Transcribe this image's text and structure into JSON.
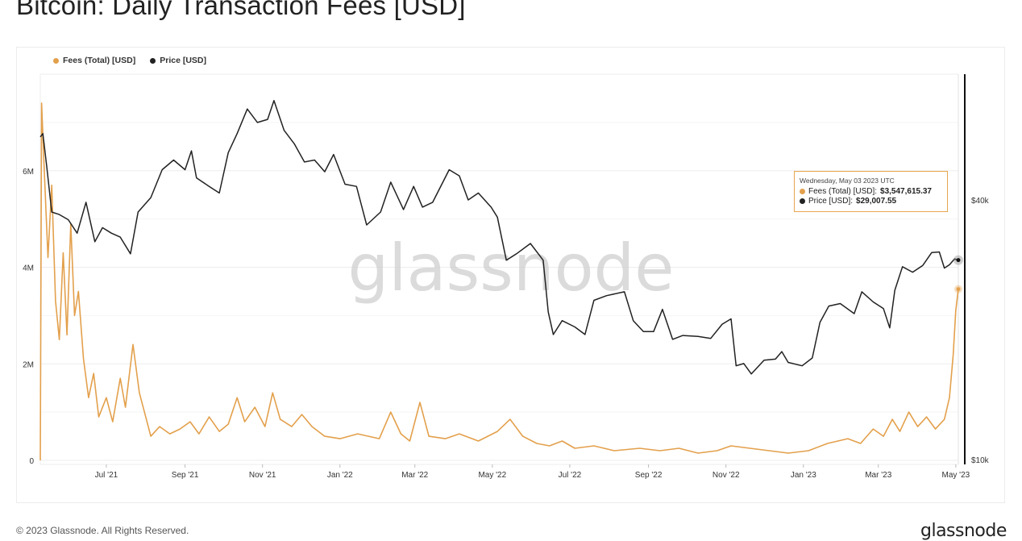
{
  "page": {
    "title": "Bitcoin: Daily Transaction Fees [USD]",
    "copyright": "© 2023 Glassnode. All Rights Reserved.",
    "logo_text": "glassnode",
    "watermark": "glassnode"
  },
  "legend": {
    "fees_label": "Fees (Total) [USD]",
    "price_label": "Price [USD]"
  },
  "tooltip": {
    "date": "Wednesday, May 03 2023 UTC",
    "fees_label": "Fees (Total) [USD]:",
    "fees_value": "$3,547,615.37",
    "price_label": "Price [USD]:",
    "price_value": "$29,007.55"
  },
  "colors": {
    "fees": "#E3A04C",
    "price": "#222222",
    "tooltip_border": "#E8A650",
    "grid": "#EDEDED"
  },
  "chart_data": {
    "type": "line",
    "title": "Bitcoin: Daily Transaction Fees [USD]",
    "x_ticks": [
      "Jul '21",
      "Sep '21",
      "Nov '21",
      "Jan '22",
      "Mar '22",
      "May '22",
      "Jul '22",
      "Sep '22",
      "Nov '22",
      "Jan '23",
      "Mar '23",
      "May '23"
    ],
    "x_tick_dates": [
      "2021-07-01",
      "2021-09-01",
      "2021-11-01",
      "2022-01-01",
      "2022-03-01",
      "2022-05-01",
      "2022-07-01",
      "2022-09-01",
      "2022-11-01",
      "2023-01-01",
      "2023-03-01",
      "2023-05-01"
    ],
    "x_range": [
      "2021-05-10",
      "2023-05-03"
    ],
    "y_left": {
      "ticks": [
        0,
        2000000,
        4000000,
        6000000
      ],
      "tick_labels": [
        "0",
        "2M",
        "4M",
        "6M"
      ],
      "range": [
        0,
        8000000
      ]
    },
    "y_right": {
      "ticks": [
        10000,
        40000
      ],
      "tick_labels": [
        "$10k",
        "$40k"
      ],
      "scale": "log"
    },
    "grid": true,
    "legend_position": "top-left",
    "series": [
      {
        "name": "Fees (Total) [USD]",
        "axis": "left",
        "points": [
          [
            "2021-05-10",
            0
          ],
          [
            "2021-05-11",
            7400000
          ],
          [
            "2021-05-13",
            6100000
          ],
          [
            "2021-05-16",
            4200000
          ],
          [
            "2021-05-19",
            5700000
          ],
          [
            "2021-05-22",
            3300000
          ],
          [
            "2021-05-25",
            2500000
          ],
          [
            "2021-05-28",
            4300000
          ],
          [
            "2021-05-31",
            2600000
          ],
          [
            "2021-06-03",
            4900000
          ],
          [
            "2021-06-06",
            3000000
          ],
          [
            "2021-06-09",
            3500000
          ],
          [
            "2021-06-13",
            2100000
          ],
          [
            "2021-06-17",
            1300000
          ],
          [
            "2021-06-21",
            1800000
          ],
          [
            "2021-06-25",
            900000
          ],
          [
            "2021-07-01",
            1300000
          ],
          [
            "2021-07-06",
            800000
          ],
          [
            "2021-07-12",
            1700000
          ],
          [
            "2021-07-16",
            1100000
          ],
          [
            "2021-07-22",
            2400000
          ],
          [
            "2021-07-27",
            1400000
          ],
          [
            "2021-08-01",
            900000
          ],
          [
            "2021-08-05",
            500000
          ],
          [
            "2021-08-12",
            700000
          ],
          [
            "2021-08-20",
            550000
          ],
          [
            "2021-08-28",
            650000
          ],
          [
            "2021-09-05",
            800000
          ],
          [
            "2021-09-12",
            550000
          ],
          [
            "2021-09-20",
            900000
          ],
          [
            "2021-09-28",
            600000
          ],
          [
            "2021-10-05",
            750000
          ],
          [
            "2021-10-12",
            1300000
          ],
          [
            "2021-10-18",
            800000
          ],
          [
            "2021-10-26",
            1100000
          ],
          [
            "2021-11-03",
            700000
          ],
          [
            "2021-11-09",
            1400000
          ],
          [
            "2021-11-15",
            850000
          ],
          [
            "2021-11-24",
            700000
          ],
          [
            "2021-12-02",
            950000
          ],
          [
            "2021-12-10",
            700000
          ],
          [
            "2021-12-20",
            500000
          ],
          [
            "2022-01-01",
            450000
          ],
          [
            "2022-01-15",
            550000
          ],
          [
            "2022-02-01",
            450000
          ],
          [
            "2022-02-10",
            1000000
          ],
          [
            "2022-02-18",
            550000
          ],
          [
            "2022-02-25",
            400000
          ],
          [
            "2022-03-05",
            1200000
          ],
          [
            "2022-03-12",
            500000
          ],
          [
            "2022-03-25",
            450000
          ],
          [
            "2022-04-05",
            550000
          ],
          [
            "2022-04-20",
            400000
          ],
          [
            "2022-05-05",
            600000
          ],
          [
            "2022-05-15",
            850000
          ],
          [
            "2022-05-25",
            500000
          ],
          [
            "2022-06-05",
            350000
          ],
          [
            "2022-06-15",
            300000
          ],
          [
            "2022-06-25",
            400000
          ],
          [
            "2022-07-05",
            250000
          ],
          [
            "2022-07-20",
            300000
          ],
          [
            "2022-08-05",
            200000
          ],
          [
            "2022-08-25",
            250000
          ],
          [
            "2022-09-10",
            200000
          ],
          [
            "2022-09-25",
            250000
          ],
          [
            "2022-10-10",
            150000
          ],
          [
            "2022-10-25",
            200000
          ],
          [
            "2022-11-05",
            300000
          ],
          [
            "2022-11-20",
            250000
          ],
          [
            "2022-12-05",
            200000
          ],
          [
            "2022-12-20",
            150000
          ],
          [
            "2023-01-05",
            200000
          ],
          [
            "2023-01-20",
            350000
          ],
          [
            "2023-02-05",
            450000
          ],
          [
            "2023-02-15",
            350000
          ],
          [
            "2023-02-25",
            650000
          ],
          [
            "2023-03-05",
            500000
          ],
          [
            "2023-03-12",
            850000
          ],
          [
            "2023-03-18",
            600000
          ],
          [
            "2023-03-25",
            1000000
          ],
          [
            "2023-04-01",
            700000
          ],
          [
            "2023-04-08",
            900000
          ],
          [
            "2023-04-15",
            650000
          ],
          [
            "2023-04-22",
            850000
          ],
          [
            "2023-04-26",
            1300000
          ],
          [
            "2023-04-29",
            2200000
          ],
          [
            "2023-05-01",
            3100000
          ],
          [
            "2023-05-03",
            3547615
          ]
        ]
      },
      {
        "name": "Price [USD]",
        "axis": "right",
        "points": [
          [
            "2021-05-10",
            56000
          ],
          [
            "2021-05-12",
            57000
          ],
          [
            "2021-05-15",
            48000
          ],
          [
            "2021-05-19",
            37500
          ],
          [
            "2021-05-25",
            37000
          ],
          [
            "2021-06-01",
            36000
          ],
          [
            "2021-06-08",
            33500
          ],
          [
            "2021-06-15",
            39500
          ],
          [
            "2021-06-22",
            32000
          ],
          [
            "2021-06-28",
            34500
          ],
          [
            "2021-07-05",
            33500
          ],
          [
            "2021-07-12",
            32800
          ],
          [
            "2021-07-20",
            30000
          ],
          [
            "2021-07-26",
            37500
          ],
          [
            "2021-08-05",
            40500
          ],
          [
            "2021-08-14",
            47000
          ],
          [
            "2021-08-23",
            49500
          ],
          [
            "2021-09-01",
            47000
          ],
          [
            "2021-09-06",
            52000
          ],
          [
            "2021-09-10",
            45000
          ],
          [
            "2021-09-20",
            43000
          ],
          [
            "2021-09-28",
            41500
          ],
          [
            "2021-10-05",
            51500
          ],
          [
            "2021-10-12",
            57000
          ],
          [
            "2021-10-20",
            65000
          ],
          [
            "2021-10-28",
            60500
          ],
          [
            "2021-11-05",
            61500
          ],
          [
            "2021-11-10",
            68000
          ],
          [
            "2021-11-18",
            58000
          ],
          [
            "2021-11-26",
            54000
          ],
          [
            "2021-12-04",
            49000
          ],
          [
            "2021-12-12",
            49500
          ],
          [
            "2021-12-20",
            46500
          ],
          [
            "2021-12-27",
            51000
          ],
          [
            "2022-01-05",
            43500
          ],
          [
            "2022-01-14",
            43000
          ],
          [
            "2022-01-22",
            35000
          ],
          [
            "2022-02-02",
            37500
          ],
          [
            "2022-02-10",
            44000
          ],
          [
            "2022-02-20",
            38000
          ],
          [
            "2022-02-28",
            43000
          ],
          [
            "2022-03-07",
            38500
          ],
          [
            "2022-03-15",
            39500
          ],
          [
            "2022-03-28",
            47000
          ],
          [
            "2022-04-05",
            45500
          ],
          [
            "2022-04-12",
            40000
          ],
          [
            "2022-04-20",
            41500
          ],
          [
            "2022-04-30",
            38500
          ],
          [
            "2022-05-05",
            36500
          ],
          [
            "2022-05-12",
            29000
          ],
          [
            "2022-05-20",
            30000
          ],
          [
            "2022-05-31",
            31700
          ],
          [
            "2022-06-10",
            29000
          ],
          [
            "2022-06-14",
            22000
          ],
          [
            "2022-06-18",
            19500
          ],
          [
            "2022-06-25",
            21000
          ],
          [
            "2022-07-05",
            20300
          ],
          [
            "2022-07-13",
            19500
          ],
          [
            "2022-07-20",
            23400
          ],
          [
            "2022-07-30",
            24000
          ],
          [
            "2022-08-13",
            24500
          ],
          [
            "2022-08-20",
            21000
          ],
          [
            "2022-08-28",
            19800
          ],
          [
            "2022-09-05",
            19800
          ],
          [
            "2022-09-12",
            22300
          ],
          [
            "2022-09-20",
            19000
          ],
          [
            "2022-09-28",
            19400
          ],
          [
            "2022-10-10",
            19300
          ],
          [
            "2022-10-20",
            19100
          ],
          [
            "2022-10-29",
            20600
          ],
          [
            "2022-11-05",
            21200
          ],
          [
            "2022-11-09",
            16500
          ],
          [
            "2022-11-15",
            16700
          ],
          [
            "2022-11-21",
            15800
          ],
          [
            "2022-12-01",
            17000
          ],
          [
            "2022-12-10",
            17100
          ],
          [
            "2022-12-15",
            17800
          ],
          [
            "2022-12-20",
            16800
          ],
          [
            "2022-12-31",
            16500
          ],
          [
            "2023-01-08",
            17200
          ],
          [
            "2023-01-14",
            20800
          ],
          [
            "2023-01-21",
            22700
          ],
          [
            "2023-01-30",
            23000
          ],
          [
            "2023-02-10",
            21800
          ],
          [
            "2023-02-16",
            24500
          ],
          [
            "2023-02-25",
            23200
          ],
          [
            "2023-03-05",
            22400
          ],
          [
            "2023-03-10",
            20200
          ],
          [
            "2023-03-14",
            24700
          ],
          [
            "2023-03-20",
            28000
          ],
          [
            "2023-03-28",
            27200
          ],
          [
            "2023-04-05",
            28200
          ],
          [
            "2023-04-12",
            30200
          ],
          [
            "2023-04-18",
            30300
          ],
          [
            "2023-04-22",
            27800
          ],
          [
            "2023-04-26",
            28300
          ],
          [
            "2023-04-30",
            29200
          ],
          [
            "2023-05-03",
            29007.55
          ]
        ]
      }
    ]
  }
}
